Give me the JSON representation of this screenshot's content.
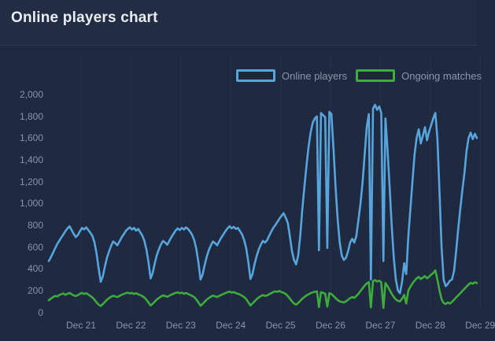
{
  "header": {
    "title": "Online players chart"
  },
  "legend": {
    "items": [
      {
        "label": "Online players",
        "color": "#57a5dc"
      },
      {
        "label": "Ongoing matches",
        "color": "#3dac3d"
      }
    ]
  },
  "colors": {
    "page_background": "#1f2940",
    "header_background": "#222c43",
    "divider": "#2d3951",
    "title_text": "#e9edf3",
    "axis_text": "#8994a8",
    "gridline": "#273248",
    "swatch_fill": "#1c2738"
  },
  "chart_data": {
    "type": "line",
    "title": "Online players chart",
    "xlabel": "",
    "ylabel": "",
    "x_tick_labels": [
      "Dec 21",
      "Dec 22",
      "Dec 23",
      "Dec 24",
      "Dec 25",
      "Dec 26",
      "Dec 27",
      "Dec 28",
      "Dec 29"
    ],
    "x_sampling": "hourly",
    "ylim": [
      0,
      2000
    ],
    "y_ticks": [
      0,
      200,
      400,
      600,
      800,
      1000,
      1200,
      1400,
      1600,
      1800,
      2000
    ],
    "y_tick_labels": [
      "0",
      "200",
      "400",
      "600",
      "800",
      "1,000",
      "1,200",
      "1,400",
      "1,600",
      "1,800",
      "2,000"
    ],
    "grid": "faint vertical gridline at each day tick, no horizontal gridlines",
    "legend_position": "top",
    "series": [
      {
        "name": "Online players",
        "color": "#57a5dc",
        "values": [
          470,
          505,
          545,
          585,
          625,
          655,
          685,
          715,
          745,
          770,
          790,
          755,
          720,
          690,
          710,
          745,
          775,
          760,
          780,
          755,
          730,
          700,
          640,
          540,
          400,
          280,
          330,
          420,
          500,
          560,
          610,
          650,
          635,
          615,
          650,
          685,
          715,
          745,
          765,
          780,
          760,
          775,
          750,
          765,
          735,
          705,
          655,
          575,
          455,
          310,
          360,
          450,
          525,
          580,
          625,
          655,
          640,
          620,
          655,
          690,
          720,
          750,
          770,
          755,
          775,
          760,
          780,
          765,
          740,
          710,
          660,
          580,
          460,
          300,
          345,
          435,
          510,
          570,
          615,
          650,
          635,
          615,
          650,
          685,
          715,
          745,
          770,
          790,
          770,
          785,
          765,
          775,
          745,
          715,
          665,
          585,
          465,
          305,
          350,
          440,
          515,
          575,
          620,
          655,
          640,
          660,
          700,
          740,
          775,
          800,
          830,
          860,
          885,
          910,
          870,
          820,
          700,
          560,
          480,
          440,
          520,
          700,
          950,
          1150,
          1350,
          1520,
          1650,
          1740,
          1780,
          1800,
          570,
          1830,
          1810,
          1790,
          590,
          1840,
          1820,
          1500,
          1150,
          850,
          640,
          520,
          480,
          500,
          560,
          640,
          675,
          640,
          700,
          850,
          1000,
          1200,
          1450,
          1700,
          1820,
          300,
          1870,
          1905,
          1860,
          1890,
          1830,
          470,
          1780,
          1500,
          1150,
          800,
          500,
          300,
          200,
          175,
          280,
          450,
          350,
          700,
          950,
          1200,
          1450,
          1600,
          1680,
          1550,
          1620,
          1700,
          1580,
          1660,
          1720,
          1780,
          1830,
          1600,
          1100,
          600,
          300,
          240,
          260,
          290,
          300,
          380,
          560,
          760,
          950,
          1120,
          1280,
          1480,
          1600,
          1650,
          1590,
          1640,
          1600
        ]
      },
      {
        "name": "Ongoing matches",
        "color": "#3dac3d",
        "values": [
          110,
          125,
          138,
          150,
          145,
          158,
          165,
          172,
          160,
          170,
          178,
          165,
          155,
          148,
          158,
          170,
          178,
          168,
          175,
          162,
          150,
          135,
          115,
          90,
          70,
          58,
          75,
          95,
          115,
          130,
          142,
          152,
          145,
          140,
          150,
          160,
          168,
          175,
          180,
          172,
          178,
          168,
          175,
          165,
          158,
          148,
          135,
          115,
          88,
          62,
          78,
          98,
          118,
          132,
          145,
          155,
          148,
          142,
          152,
          162,
          170,
          178,
          182,
          175,
          180,
          170,
          178,
          168,
          160,
          150,
          138,
          118,
          90,
          60,
          76,
          96,
          116,
          130,
          143,
          153,
          146,
          140,
          150,
          160,
          168,
          176,
          184,
          190,
          180,
          186,
          176,
          170,
          162,
          152,
          140,
          120,
          92,
          62,
          80,
          100,
          120,
          135,
          148,
          158,
          150,
          155,
          165,
          175,
          185,
          192,
          188,
          195,
          185,
          178,
          168,
          150,
          125,
          100,
          80,
          70,
          85,
          105,
          125,
          140,
          155,
          165,
          175,
          182,
          188,
          192,
          48,
          185,
          178,
          170,
          52,
          175,
          168,
          150,
          130,
          112,
          100,
          95,
          90,
          100,
          115,
          130,
          140,
          132,
          150,
          170,
          195,
          220,
          245,
          265,
          278,
          45,
          285,
          295,
          282,
          290,
          275,
          40,
          268,
          240,
          205,
          170,
          140,
          118,
          105,
          100,
          125,
          160,
          80,
          200,
          235,
          265,
          290,
          310,
          325,
          305,
          318,
          332,
          312,
          328,
          345,
          360,
          385,
          300,
          200,
          120,
          85,
          75,
          90,
          80,
          95,
          115,
          135,
          155,
          175,
          195,
          215,
          235,
          255,
          270,
          262,
          275,
          268
        ]
      }
    ]
  }
}
